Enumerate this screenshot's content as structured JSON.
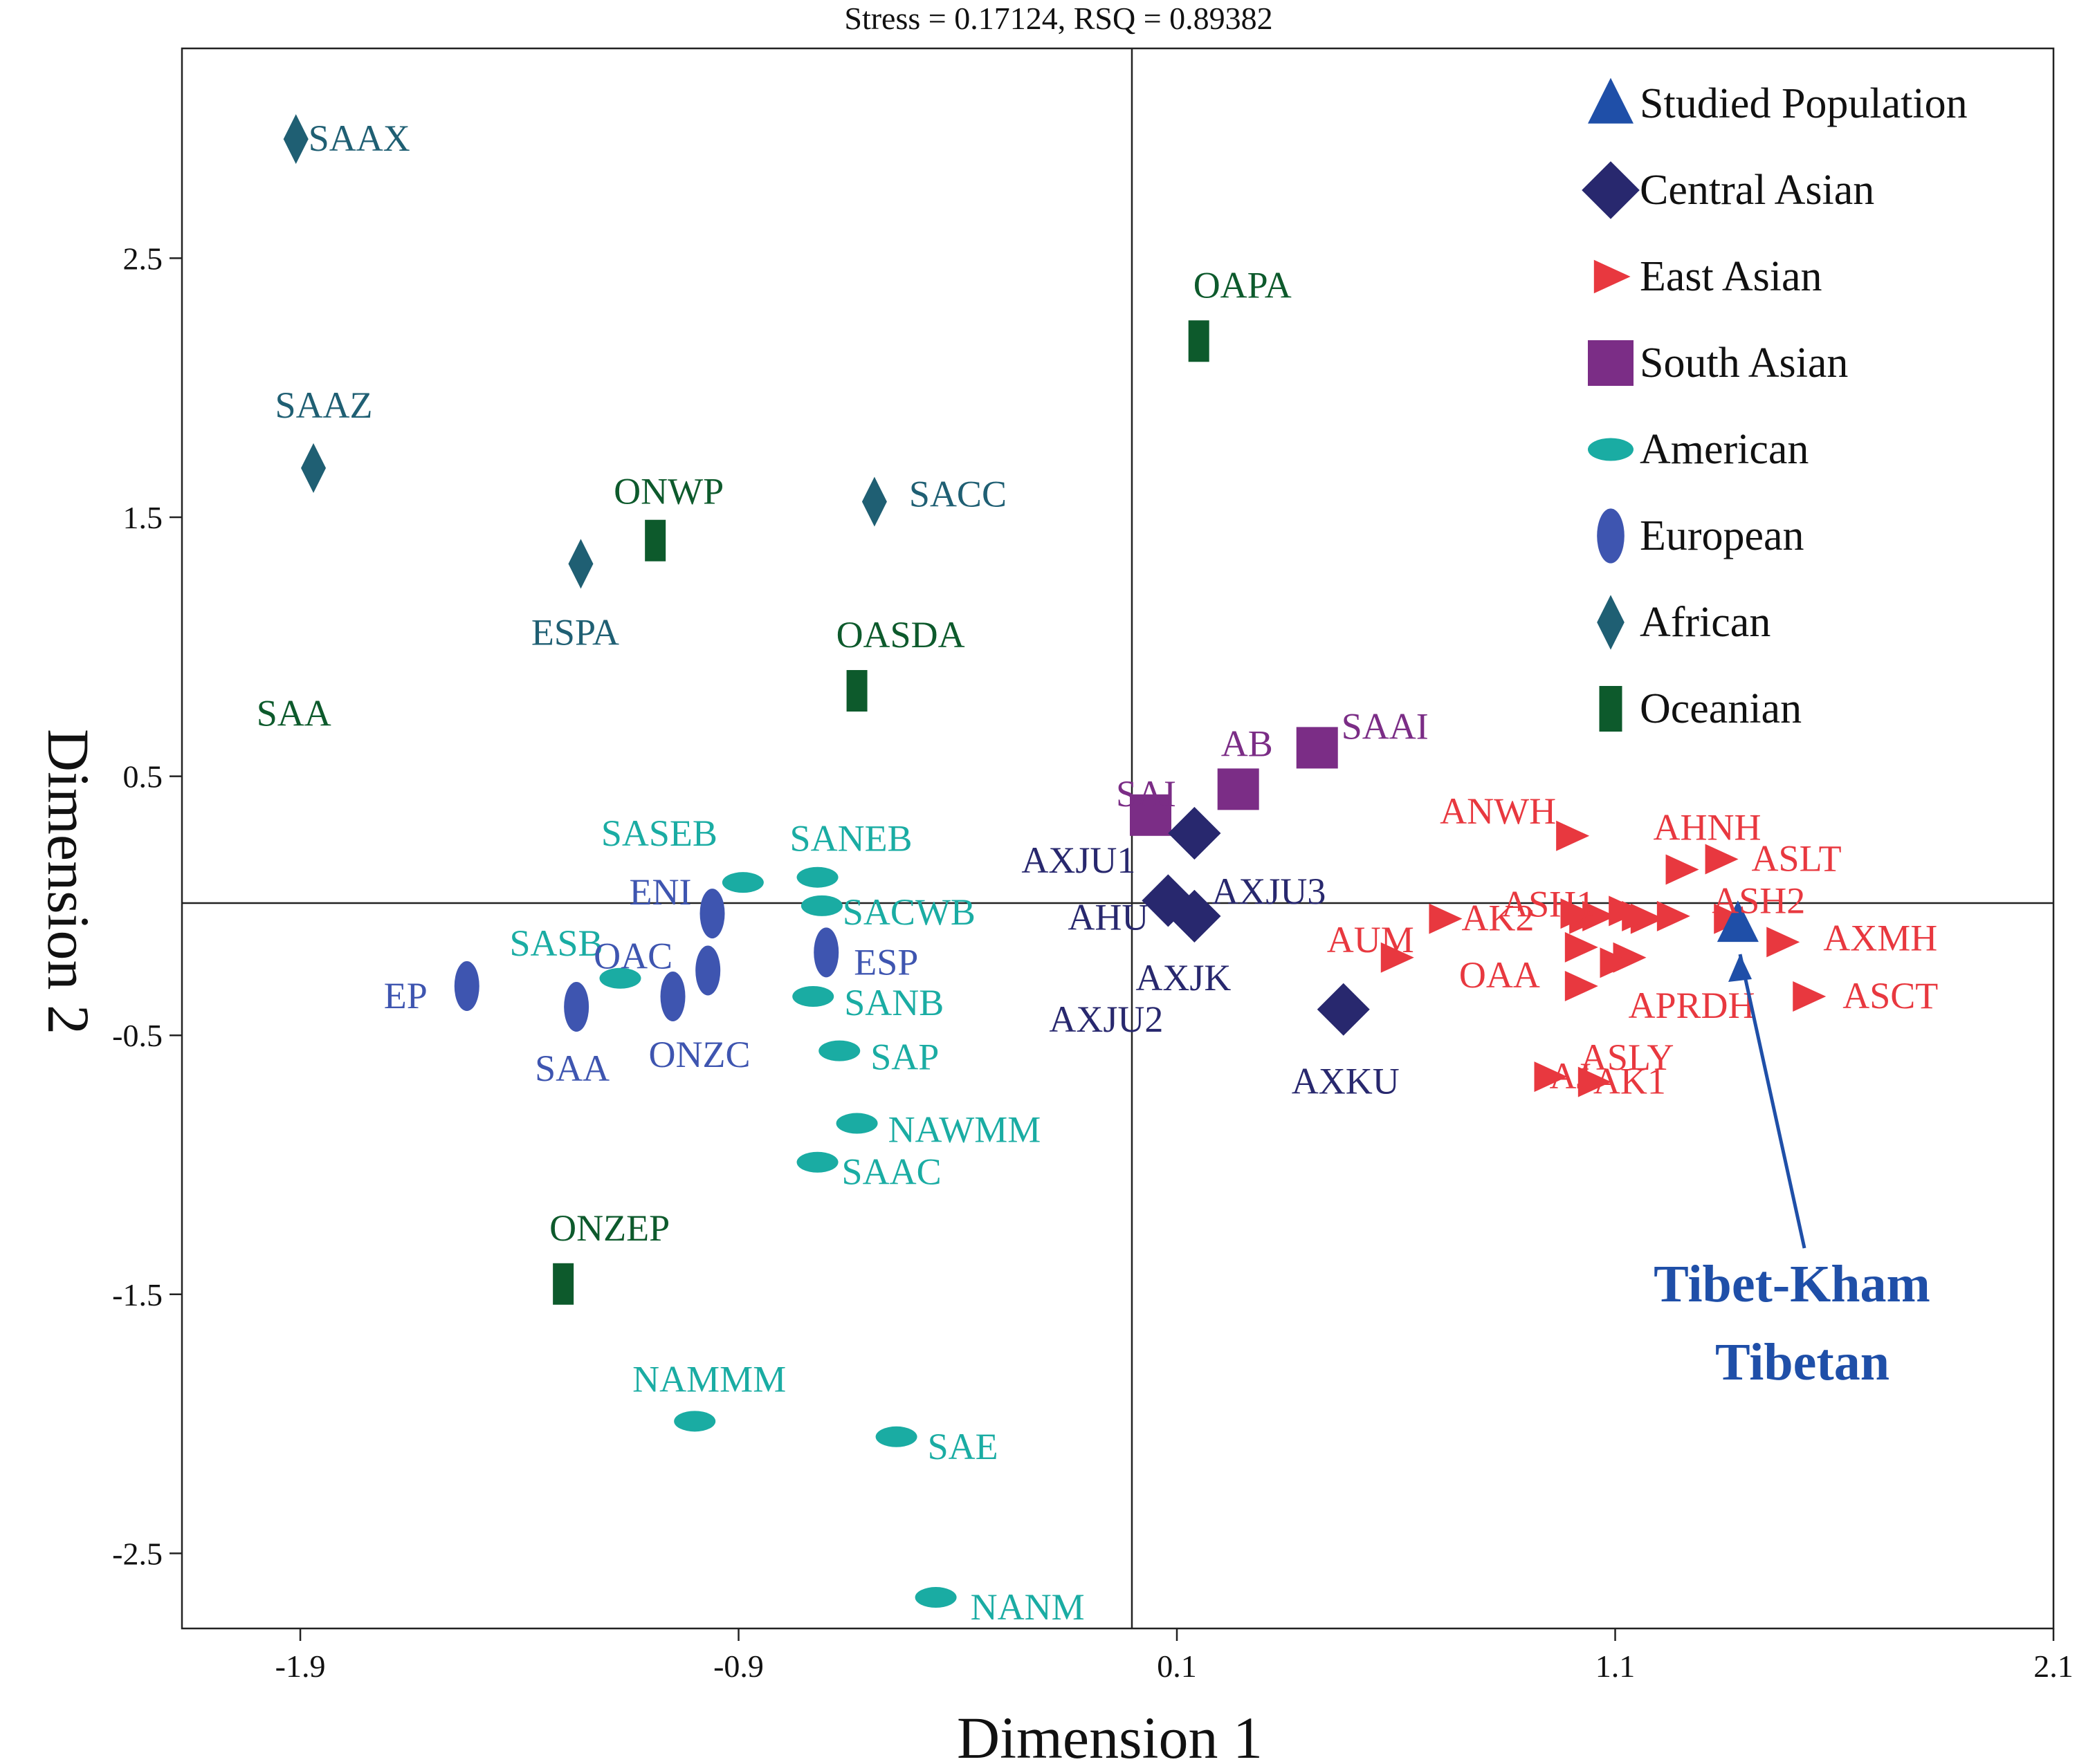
{
  "chart_data": {
    "type": "scatter",
    "title": "Stress = 0.17124, RSQ = 0.89382",
    "xlabel": "Dimension 1",
    "ylabel": "Dimension 2",
    "xlim": [
      -2.17,
      2.1
    ],
    "ylim": [
      -2.79,
      3.31
    ],
    "xticks": [
      -1.9,
      -0.9,
      0.1,
      1.1,
      2.1
    ],
    "xtick_labels": [
      "-1.9",
      "-0.9",
      "0.1",
      "1.1",
      "2.1"
    ],
    "yticks": [
      2.5,
      1.5,
      0.5,
      -0.5,
      -1.5,
      -2.5
    ],
    "ytick_labels": [
      "2.5",
      "1.5",
      "0.5",
      "-0.5",
      "-1.5",
      "-2.5"
    ],
    "reference_lines": {
      "x": 0.02,
      "y": 0.0
    },
    "groups": [
      {
        "key": "studied",
        "name": "Studied Population",
        "marker": "triangle-up",
        "color": "#1f4fa8"
      },
      {
        "key": "central",
        "name": "Central Asian",
        "marker": "diamond",
        "color": "#28286e"
      },
      {
        "key": "east",
        "name": "East Asian",
        "marker": "triangle-right",
        "color": "#e8383f"
      },
      {
        "key": "south",
        "name": "South Asian",
        "marker": "square",
        "color": "#7b2d86"
      },
      {
        "key": "american",
        "name": "American",
        "marker": "ellipse-h",
        "color": "#1aaca3"
      },
      {
        "key": "european",
        "name": "European",
        "marker": "ellipse-v",
        "color": "#3e55b0"
      },
      {
        "key": "african",
        "name": "African",
        "marker": "thin-diamond",
        "color": "#1f5f73"
      },
      {
        "key": "oceanian",
        "name": "Oceanian",
        "marker": "rect-v",
        "color": "#0d5a2c"
      }
    ],
    "points": [
      {
        "label": "SAAX",
        "group": "african",
        "x": -1.91,
        "y": 2.96,
        "label_dx": 18,
        "label_dy": 0,
        "anchor": "start"
      },
      {
        "label": "SAAZ",
        "group": "african",
        "x": -1.87,
        "y": 1.69,
        "label_dx": 15,
        "label_dy": -90,
        "anchor": "middle"
      },
      {
        "label": "ESPA",
        "group": "african",
        "x": -1.26,
        "y": 1.32,
        "label_dx": -8,
        "label_dy": 100,
        "anchor": "middle"
      },
      {
        "label": "SACC",
        "group": "african",
        "x": -0.59,
        "y": 1.56,
        "label_dx": 50,
        "label_dy": -10,
        "anchor": "start"
      },
      {
        "label": "ONWP",
        "group": "oceanian",
        "x": -1.09,
        "y": 1.41,
        "label_dx": -60,
        "label_dy": -70,
        "anchor": "start"
      },
      {
        "label": "OASDA",
        "group": "oceanian",
        "x": -0.63,
        "y": 0.83,
        "label_dx": -30,
        "label_dy": -80,
        "anchor": "start"
      },
      {
        "label": "OAPA",
        "group": "oceanian",
        "x": 0.15,
        "y": 2.18,
        "label_dx": -8,
        "label_dy": -80,
        "anchor": "start"
      },
      {
        "label": "ONZEP",
        "group": "oceanian",
        "x": -1.3,
        "y": -1.46,
        "label_dx": -20,
        "label_dy": -80,
        "anchor": "start"
      },
      {
        "label": "SAA",
        "group": "oceanian_text",
        "x": -2.0,
        "y": 0.74,
        "label_dx": 0,
        "label_dy": 0,
        "anchor": "start"
      },
      {
        "label": "SAI",
        "group": "south",
        "x": 0.04,
        "y": 0.35,
        "label_dx": -50,
        "label_dy": -30,
        "anchor": "start"
      },
      {
        "label": "AB",
        "group": "south",
        "x": 0.24,
        "y": 0.45,
        "label_dx": -25,
        "label_dy": -65,
        "anchor": "start"
      },
      {
        "label": "SAAI",
        "group": "south",
        "x": 0.42,
        "y": 0.61,
        "label_dx": 35,
        "label_dy": -30,
        "anchor": "start"
      },
      {
        "label": "AXJU1",
        "group": "central",
        "x": 0.14,
        "y": 0.28,
        "label_dx": -250,
        "label_dy": 40,
        "anchor": "start"
      },
      {
        "label": "AXJU3",
        "group": "central",
        "x": 0.14,
        "y": 0.28,
        "label_dx": 25,
        "label_dy": 85,
        "anchor": "start"
      },
      {
        "label": "AHU",
        "group": "central",
        "x": 0.08,
        "y": 0.02,
        "label_dx": -145,
        "label_dy": 25,
        "anchor": "start"
      },
      {
        "label": "AXJK",
        "group": "central",
        "x": 0.14,
        "y": -0.04,
        "label_dx": -85,
        "label_dy": 90,
        "anchor": "start"
      },
      {
        "label": "AXJU2",
        "group": "central",
        "x": 0.14,
        "y": -0.04,
        "label_dx": -210,
        "label_dy": 150,
        "anchor": "start"
      },
      {
        "label": "AXKU",
        "group": "central",
        "x": 0.48,
        "y": -0.4,
        "label_dx": -75,
        "label_dy": 105,
        "anchor": "start"
      },
      {
        "label": "ANWH",
        "group": "east",
        "x": 1.0,
        "y": 0.27,
        "label_dx": -190,
        "label_dy": -35,
        "anchor": "start"
      },
      {
        "label": "AHNH",
        "group": "east",
        "x": 1.25,
        "y": 0.14,
        "label_dx": -40,
        "label_dy": -60,
        "anchor": "start"
      },
      {
        "label": "ASLT",
        "group": "east",
        "x": 1.34,
        "y": 0.18,
        "label_dx": 45,
        "label_dy": 0,
        "anchor": "start"
      },
      {
        "label": "ASH1",
        "group": "east",
        "x": 1.03,
        "y": -0.05,
        "label_dx": -120,
        "label_dy": -20,
        "anchor": "start"
      },
      {
        "label": "ASH2",
        "group": "east",
        "x": 1.36,
        "y": -0.05,
        "label_dx": -25,
        "label_dy": -25,
        "anchor": "start"
      },
      {
        "label": "AUM",
        "group": "east",
        "x": 0.6,
        "y": -0.2,
        "label_dx": -100,
        "label_dy": -25,
        "anchor": "start"
      },
      {
        "label": "AK2",
        "group": "east",
        "x": 0.71,
        "y": -0.05,
        "label_dx": 25,
        "label_dy": 0,
        "anchor": "start"
      },
      {
        "label": "OAA",
        "group": "east",
        "x": 1.02,
        "y": -0.31,
        "label_dx": -175,
        "label_dy": -15,
        "anchor": "start"
      },
      {
        "label": "APRDH",
        "group": "east",
        "x": 1.13,
        "y": -0.2,
        "label_dx": 0,
        "label_dy": 70,
        "anchor": "start"
      },
      {
        "label": "ASLY",
        "group": "east",
        "x": 1.02,
        "y": -0.16,
        "label_dx": 0,
        "label_dy": 160,
        "anchor": "start"
      },
      {
        "label": "AJ",
        "group": "east",
        "x": 0.95,
        "y": -0.66,
        "label_dx": 0,
        "label_dy": 0,
        "anchor": "start"
      },
      {
        "label": "AK1",
        "group": "east",
        "x": 1.05,
        "y": -0.68,
        "label_dx": 0,
        "label_dy": 0,
        "anchor": "start"
      },
      {
        "label": "AXMH",
        "group": "east",
        "x": 1.48,
        "y": -0.14,
        "label_dx": 60,
        "label_dy": -5,
        "anchor": "start"
      },
      {
        "label": "ASCT",
        "group": "east",
        "x": 1.54,
        "y": -0.35,
        "label_dx": 50,
        "label_dy": 0,
        "anchor": "start"
      },
      {
        "label": "",
        "group": "east",
        "x": 1.06,
        "y": -0.04,
        "label_dx": 0,
        "label_dy": 0,
        "anchor": "start"
      },
      {
        "label": "",
        "group": "east",
        "x": 1.12,
        "y": -0.02,
        "label_dx": 0,
        "label_dy": 0,
        "anchor": "start"
      },
      {
        "label": "",
        "group": "east",
        "x": 1.17,
        "y": -0.05,
        "label_dx": 0,
        "label_dy": 0,
        "anchor": "start"
      },
      {
        "label": "",
        "group": "east",
        "x": 1.1,
        "y": -0.22,
        "label_dx": 0,
        "label_dy": 0,
        "anchor": "start"
      },
      {
        "label": "",
        "group": "east",
        "x": 1.01,
        "y": -0.03,
        "label_dx": 0,
        "label_dy": 0,
        "anchor": "start"
      },
      {
        "label": "",
        "group": "east",
        "x": 1.15,
        "y": -0.04,
        "label_dx": 0,
        "label_dy": 0,
        "anchor": "start"
      },
      {
        "label": "",
        "group": "east",
        "x": 1.23,
        "y": -0.04,
        "label_dx": 0,
        "label_dy": 0,
        "anchor": "start"
      },
      {
        "label": "SASEB",
        "group": "american",
        "x": -0.89,
        "y": 0.09,
        "label_dx": -205,
        "label_dy": -70,
        "anchor": "start"
      },
      {
        "label": "SANEB",
        "group": "american",
        "x": -0.72,
        "y": 0.11,
        "label_dx": -40,
        "label_dy": -55,
        "anchor": "start"
      },
      {
        "label": "SACWB",
        "group": "american",
        "x": -0.71,
        "y": 0.0,
        "label_dx": 30,
        "label_dy": 10,
        "anchor": "start"
      },
      {
        "label": "SASB",
        "group": "american",
        "x": -1.17,
        "y": -0.28,
        "label_dx": -160,
        "label_dy": -50,
        "anchor": "start"
      },
      {
        "label": "SANB",
        "group": "american",
        "x": -0.73,
        "y": -0.35,
        "label_dx": 45,
        "label_dy": 10,
        "anchor": "start"
      },
      {
        "label": "SAP",
        "group": "american",
        "x": -0.67,
        "y": -0.56,
        "label_dx": 45,
        "label_dy": 10,
        "anchor": "start"
      },
      {
        "label": "NAWMM",
        "group": "american",
        "x": -0.63,
        "y": -0.84,
        "label_dx": 45,
        "label_dy": 10,
        "anchor": "start"
      },
      {
        "label": "SAAC",
        "group": "american",
        "x": -0.72,
        "y": -0.99,
        "label_dx": 35,
        "label_dy": 15,
        "anchor": "start"
      },
      {
        "label": "NAMMM",
        "group": "american",
        "x": -1.0,
        "y": -1.99,
        "label_dx": -90,
        "label_dy": -60,
        "anchor": "start"
      },
      {
        "label": "SAE",
        "group": "american",
        "x": -0.54,
        "y": -2.05,
        "label_dx": 45,
        "label_dy": 15,
        "anchor": "start"
      },
      {
        "label": "NANM",
        "group": "american",
        "x": -0.45,
        "y": -2.67,
        "label_dx": 50,
        "label_dy": 15,
        "anchor": "start"
      },
      {
        "label": "ENI",
        "group": "european",
        "x": -0.96,
        "y": -0.03,
        "label_dx": -120,
        "label_dy": -30,
        "anchor": "start"
      },
      {
        "label": "ESP",
        "group": "european",
        "x": -0.7,
        "y": -0.18,
        "label_dx": 40,
        "label_dy": 15,
        "anchor": "start"
      },
      {
        "label": "OAC",
        "group": "european",
        "x": -0.97,
        "y": -0.25,
        "label_dx": -165,
        "label_dy": -20,
        "anchor": "start"
      },
      {
        "label": "ONZC",
        "group": "european",
        "x": -1.05,
        "y": -0.35,
        "label_dx": -35,
        "label_dy": 85,
        "anchor": "start"
      },
      {
        "label": "EP",
        "group": "european",
        "x": -1.52,
        "y": -0.31,
        "label_dx": -120,
        "label_dy": 15,
        "anchor": "start"
      },
      {
        "label": "SAA",
        "group": "european",
        "x": -1.27,
        "y": -0.39,
        "label_dx": -60,
        "label_dy": 90,
        "anchor": "start"
      },
      {
        "label": "",
        "group": "studied",
        "x": 1.38,
        "y": -0.07,
        "label_dx": 0,
        "label_dy": 0,
        "anchor": "start"
      }
    ],
    "annotation": {
      "line1": "Tibet-Kham",
      "line2": "Tibetan",
      "color": "#1f4fa8",
      "points_to": {
        "x": 1.38,
        "y": -0.2
      }
    }
  }
}
